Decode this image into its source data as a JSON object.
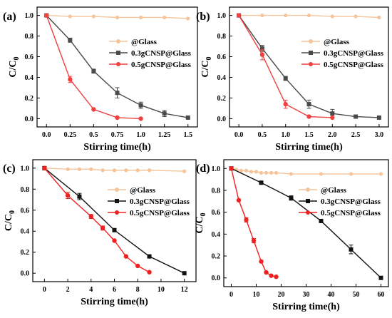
{
  "chart_data": [
    {
      "type": "line",
      "panel_label": "(a)",
      "xlabel": "Stirring time(h)",
      "ylabel": "C/C",
      "ylabel_sub": "0",
      "xlim": [
        -0.1,
        1.6
      ],
      "ylim": [
        -0.08,
        1.08
      ],
      "xticks": [
        "0.0",
        "0.25",
        "0.5",
        "0.75",
        "1.0",
        "1.25",
        "1.5"
      ],
      "xtick_values": [
        0,
        0.25,
        0.5,
        0.75,
        1.0,
        1.25,
        1.5
      ],
      "yticks": [
        "0.0",
        "0.2",
        "0.4",
        "0.6",
        "0.8",
        "1.0"
      ],
      "ytick_values": [
        0,
        0.2,
        0.4,
        0.6,
        0.8,
        1.0
      ],
      "legend_position": "top-right",
      "series": [
        {
          "name": "@Glass",
          "color": "#f5c49a",
          "marker": "circle",
          "x": [
            0,
            0.25,
            0.5,
            0.75,
            1.0,
            1.25,
            1.5
          ],
          "y": [
            1.0,
            0.99,
            0.99,
            0.98,
            0.98,
            0.98,
            0.97
          ],
          "err": [
            0,
            0,
            0,
            0,
            0,
            0,
            0
          ]
        },
        {
          "name": "0.3gCNSP@Glass",
          "color": "#4a4a4a",
          "marker": "square",
          "x": [
            0,
            0.25,
            0.5,
            0.75,
            1.0,
            1.25,
            1.5
          ],
          "y": [
            1.0,
            0.76,
            0.46,
            0.25,
            0.13,
            0.05,
            0.01
          ],
          "err": [
            0,
            0.02,
            0.02,
            0.05,
            0.03,
            0.03,
            0
          ]
        },
        {
          "name": "0.5gCNSP@Glass",
          "color": "#f04040",
          "marker": "circle",
          "x": [
            0,
            0.25,
            0.5,
            0.75,
            1.0
          ],
          "y": [
            1.0,
            0.38,
            0.09,
            0.01,
            0.0
          ],
          "err": [
            0,
            0.03,
            0,
            0,
            0
          ]
        }
      ]
    },
    {
      "type": "line",
      "panel_label": "(b)",
      "xlabel": "Stirring time(h)",
      "ylabel": "C/C",
      "ylabel_sub": "0",
      "xlim": [
        -0.2,
        3.2
      ],
      "ylim": [
        -0.08,
        1.08
      ],
      "xticks": [
        "0.0",
        "0.5",
        "1.0",
        "1.5",
        "2.0",
        "2.5",
        "3.0"
      ],
      "xtick_values": [
        0,
        0.5,
        1.0,
        1.5,
        2.0,
        2.5,
        3.0
      ],
      "yticks": [
        "0.0",
        "0.2",
        "0.4",
        "0.6",
        "0.8",
        "1.0"
      ],
      "ytick_values": [
        0,
        0.2,
        0.4,
        0.6,
        0.8,
        1.0
      ],
      "legend_position": "top-right",
      "series": [
        {
          "name": "@Glass",
          "color": "#f5c49a",
          "marker": "circle",
          "x": [
            0,
            0.5,
            1.0,
            1.5,
            2.0,
            2.5,
            3.0
          ],
          "y": [
            1.0,
            1.0,
            1.0,
            1.0,
            0.99,
            0.99,
            0.98
          ],
          "err": [
            0,
            0,
            0,
            0,
            0,
            0,
            0
          ]
        },
        {
          "name": "0.3gCNSP@Glass",
          "color": "#4a4a4a",
          "marker": "square",
          "x": [
            0,
            0.5,
            1.0,
            1.5,
            2.0,
            2.5,
            3.0
          ],
          "y": [
            1.0,
            0.68,
            0.39,
            0.14,
            0.05,
            0.02,
            0.01
          ],
          "err": [
            0,
            0.03,
            0.02,
            0.04,
            0.04,
            0,
            0
          ]
        },
        {
          "name": "0.5gCNSP@Glass",
          "color": "#f04040",
          "marker": "circle",
          "x": [
            0,
            0.5,
            1.0,
            1.5,
            2.0
          ],
          "y": [
            1.0,
            0.62,
            0.14,
            0.02,
            0.01
          ],
          "err": [
            0,
            0.05,
            0.04,
            0,
            0
          ]
        }
      ]
    },
    {
      "type": "line",
      "panel_label": "(c)",
      "xlabel": "Stirring time(h)",
      "ylabel": "C/C",
      "ylabel_sub": "0",
      "xlim": [
        -1,
        13
      ],
      "ylim": [
        -0.08,
        1.08
      ],
      "xticks": [
        "0",
        "2",
        "4",
        "6",
        "8",
        "10",
        "12"
      ],
      "xtick_values": [
        0,
        2,
        4,
        6,
        8,
        10,
        12
      ],
      "yticks": [
        "0.0",
        "0.2",
        "0.4",
        "0.6",
        "0.8",
        "1.0"
      ],
      "ytick_values": [
        0,
        0.2,
        0.4,
        0.6,
        0.8,
        1.0
      ],
      "legend_position": "top-right",
      "series": [
        {
          "name": "@Glass",
          "color": "#f5c49a",
          "marker": "circle",
          "x": [
            0,
            2,
            3,
            4,
            5,
            6,
            7,
            8,
            9,
            12
          ],
          "y": [
            1.0,
            0.99,
            0.99,
            0.99,
            0.98,
            0.98,
            0.98,
            0.98,
            0.98,
            0.97
          ],
          "err": [
            0,
            0,
            0,
            0,
            0,
            0,
            0,
            0,
            0,
            0
          ]
        },
        {
          "name": "0.3gCNSP@Glass",
          "color": "#111111",
          "marker": "square",
          "x": [
            0,
            3,
            6,
            9,
            12
          ],
          "y": [
            1.0,
            0.73,
            0.41,
            0.16,
            0.0
          ],
          "err": [
            0,
            0.03,
            0,
            0,
            0
          ]
        },
        {
          "name": "0.5gCNSP@Glass",
          "color": "#f02020",
          "marker": "circle",
          "x": [
            0,
            2,
            4,
            5,
            6,
            7,
            8,
            9
          ],
          "y": [
            1.0,
            0.74,
            0.54,
            0.43,
            0.31,
            0.16,
            0.07,
            0.01
          ],
          "err": [
            0,
            0.03,
            0.02,
            0.02,
            0,
            0,
            0,
            0
          ]
        }
      ]
    },
    {
      "type": "line",
      "panel_label": "(d)",
      "xlabel": "Stirring time(h)",
      "ylabel": "C/C",
      "ylabel_sub": "0",
      "xlim": [
        -3,
        63
      ],
      "ylim": [
        -0.08,
        1.08
      ],
      "xticks": [
        "0",
        "10",
        "20",
        "30",
        "40",
        "50",
        "60"
      ],
      "xtick_values": [
        0,
        10,
        20,
        30,
        40,
        50,
        60
      ],
      "yticks": [
        "0.0",
        "0.2",
        "0.4",
        "0.6",
        "0.8",
        "1.0"
      ],
      "ytick_values": [
        0,
        0.2,
        0.4,
        0.6,
        0.8,
        1.0
      ],
      "legend_position": "top-right",
      "series": [
        {
          "name": "@Glass",
          "color": "#f5c49a",
          "marker": "circle",
          "x": [
            0,
            2,
            4,
            6,
            8,
            10,
            12,
            14,
            16,
            18,
            24,
            36,
            48,
            60
          ],
          "y": [
            1.0,
            0.99,
            0.98,
            0.98,
            0.97,
            0.97,
            0.96,
            0.96,
            0.96,
            0.96,
            0.95,
            0.95,
            0.95,
            0.95
          ],
          "err": [
            0,
            0,
            0,
            0,
            0,
            0,
            0,
            0,
            0,
            0,
            0,
            0,
            0,
            0
          ]
        },
        {
          "name": "0.3gCNSP@Glass",
          "color": "#111111",
          "marker": "square",
          "x": [
            0,
            12,
            24,
            36,
            48,
            60
          ],
          "y": [
            1.0,
            0.87,
            0.73,
            0.52,
            0.26,
            0.0
          ],
          "err": [
            0,
            0,
            0.02,
            0,
            0.04,
            0
          ]
        },
        {
          "name": "0.5gCNSP@Glass",
          "color": "#f02020",
          "marker": "circle",
          "x": [
            0,
            3,
            6,
            9,
            12,
            14,
            16,
            18
          ],
          "y": [
            1.0,
            0.71,
            0.53,
            0.34,
            0.15,
            0.05,
            0.02,
            0.01
          ],
          "err": [
            0,
            0,
            0.02,
            0.02,
            0,
            0,
            0,
            0
          ]
        }
      ]
    }
  ]
}
